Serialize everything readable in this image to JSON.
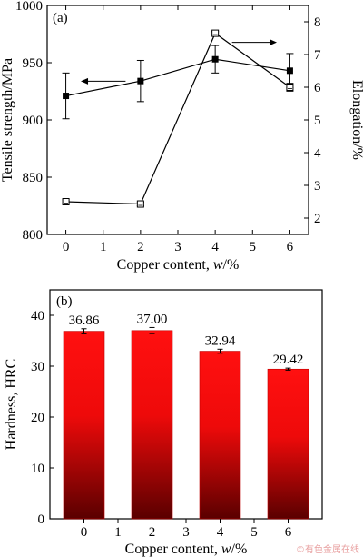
{
  "watermark": "©有色金属在线",
  "chart_data": [
    {
      "panel": "(a)",
      "type": "line",
      "x": [
        0,
        2,
        4,
        6
      ],
      "xlim": [
        -0.5,
        6.5
      ],
      "xticks": [
        0,
        1,
        2,
        3,
        4,
        5,
        6
      ],
      "xlabel": {
        "pre": "Copper content, ",
        "italic": "w",
        "post": "/%"
      },
      "ylabel_left": "Tensile strength/MPa",
      "ylabel_right": "Elongation/%",
      "ylim_left": [
        800,
        1000
      ],
      "yticks_left": [
        800,
        850,
        900,
        950,
        1000
      ],
      "ylim_right": [
        1.5,
        8.5
      ],
      "yticks_right": [
        2,
        3,
        4,
        5,
        6,
        7,
        8
      ],
      "series": [
        {
          "axis": "left",
          "marker": "filled-square",
          "values": [
            921,
            934,
            953,
            943
          ],
          "errors": [
            20,
            18,
            12,
            15
          ]
        },
        {
          "axis": "right",
          "marker": "open-square",
          "values": [
            2.5,
            2.43,
            7.65,
            6.0
          ],
          "errors": [
            0.06,
            0.06,
            0.05,
            0.12
          ]
        }
      ],
      "annotations": [
        {
          "type": "arrow",
          "direction": "left",
          "points_to": "left"
        },
        {
          "type": "arrow",
          "direction": "right",
          "points_to": "right"
        }
      ]
    },
    {
      "panel": "(b)",
      "type": "bar",
      "x": [
        0,
        2,
        4,
        6
      ],
      "values": [
        36.86,
        37.0,
        32.94,
        29.42
      ],
      "errors": [
        0.5,
        0.6,
        0.4,
        0.2
      ],
      "data_labels": [
        "36.86",
        "37.00",
        "32.94",
        "29.42"
      ],
      "xlim": [
        -1,
        7
      ],
      "xticks": [
        0,
        1,
        2,
        3,
        4,
        5,
        6
      ],
      "ylim": [
        0,
        45
      ],
      "yticks": [
        0,
        10,
        20,
        30,
        40
      ],
      "xlabel": {
        "pre": "Copper content, ",
        "italic": "w",
        "post": "/%"
      },
      "ylabel": "Hardness, HRC",
      "bar_color_top": "#ff1010",
      "bar_color_bottom": "#5a0000"
    }
  ]
}
